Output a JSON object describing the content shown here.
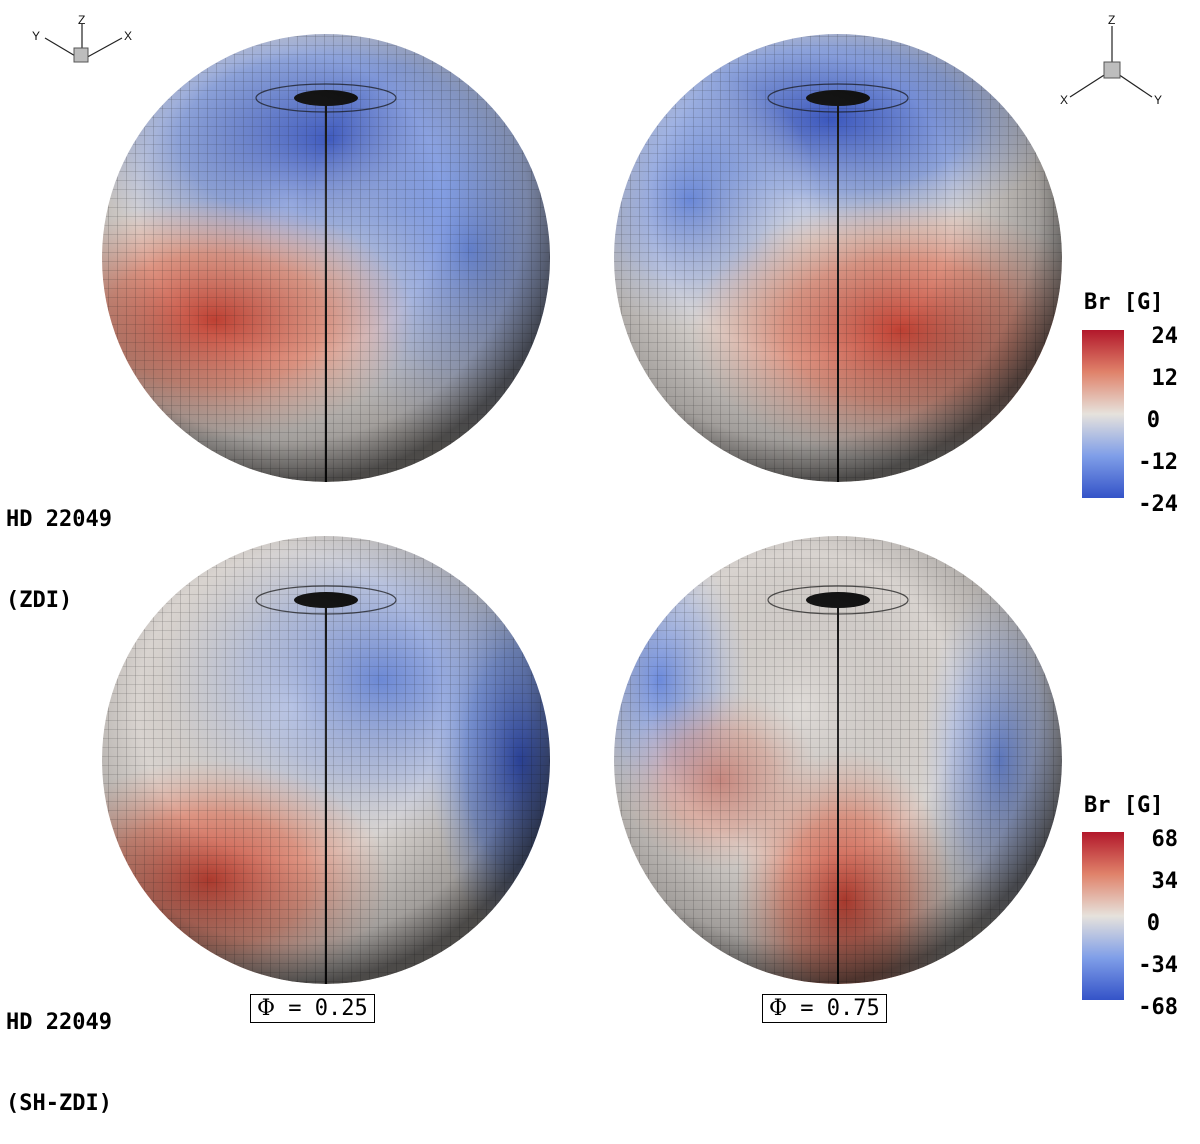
{
  "rows": [
    {
      "star": "HD 22049",
      "method": "(ZDI)"
    },
    {
      "star": "HD 22049",
      "method": "(SH-ZDI)"
    }
  ],
  "phases": [
    {
      "symbol": "Φ",
      "text": " = 0.25"
    },
    {
      "symbol": "Φ",
      "text": " = 0.75"
    }
  ],
  "colorbars": [
    {
      "title": "Br [G]",
      "ticks": [
        "24",
        "12",
        "0",
        "-12",
        "-24"
      ],
      "range": [
        -24,
        24
      ]
    },
    {
      "title": "Br [G]",
      "ticks": [
        "68",
        "34",
        "0",
        "-34",
        "-68"
      ],
      "range": [
        -68,
        68
      ]
    }
  ],
  "axes_triads": [
    {
      "labels": [
        "Y",
        "Z",
        "X"
      ]
    },
    {
      "labels": [
        "Z",
        "X",
        "Y"
      ]
    }
  ],
  "colormap": {
    "positive": "#b2182b",
    "mid": "#e6e0da",
    "negative": "#3a5fcd"
  }
}
